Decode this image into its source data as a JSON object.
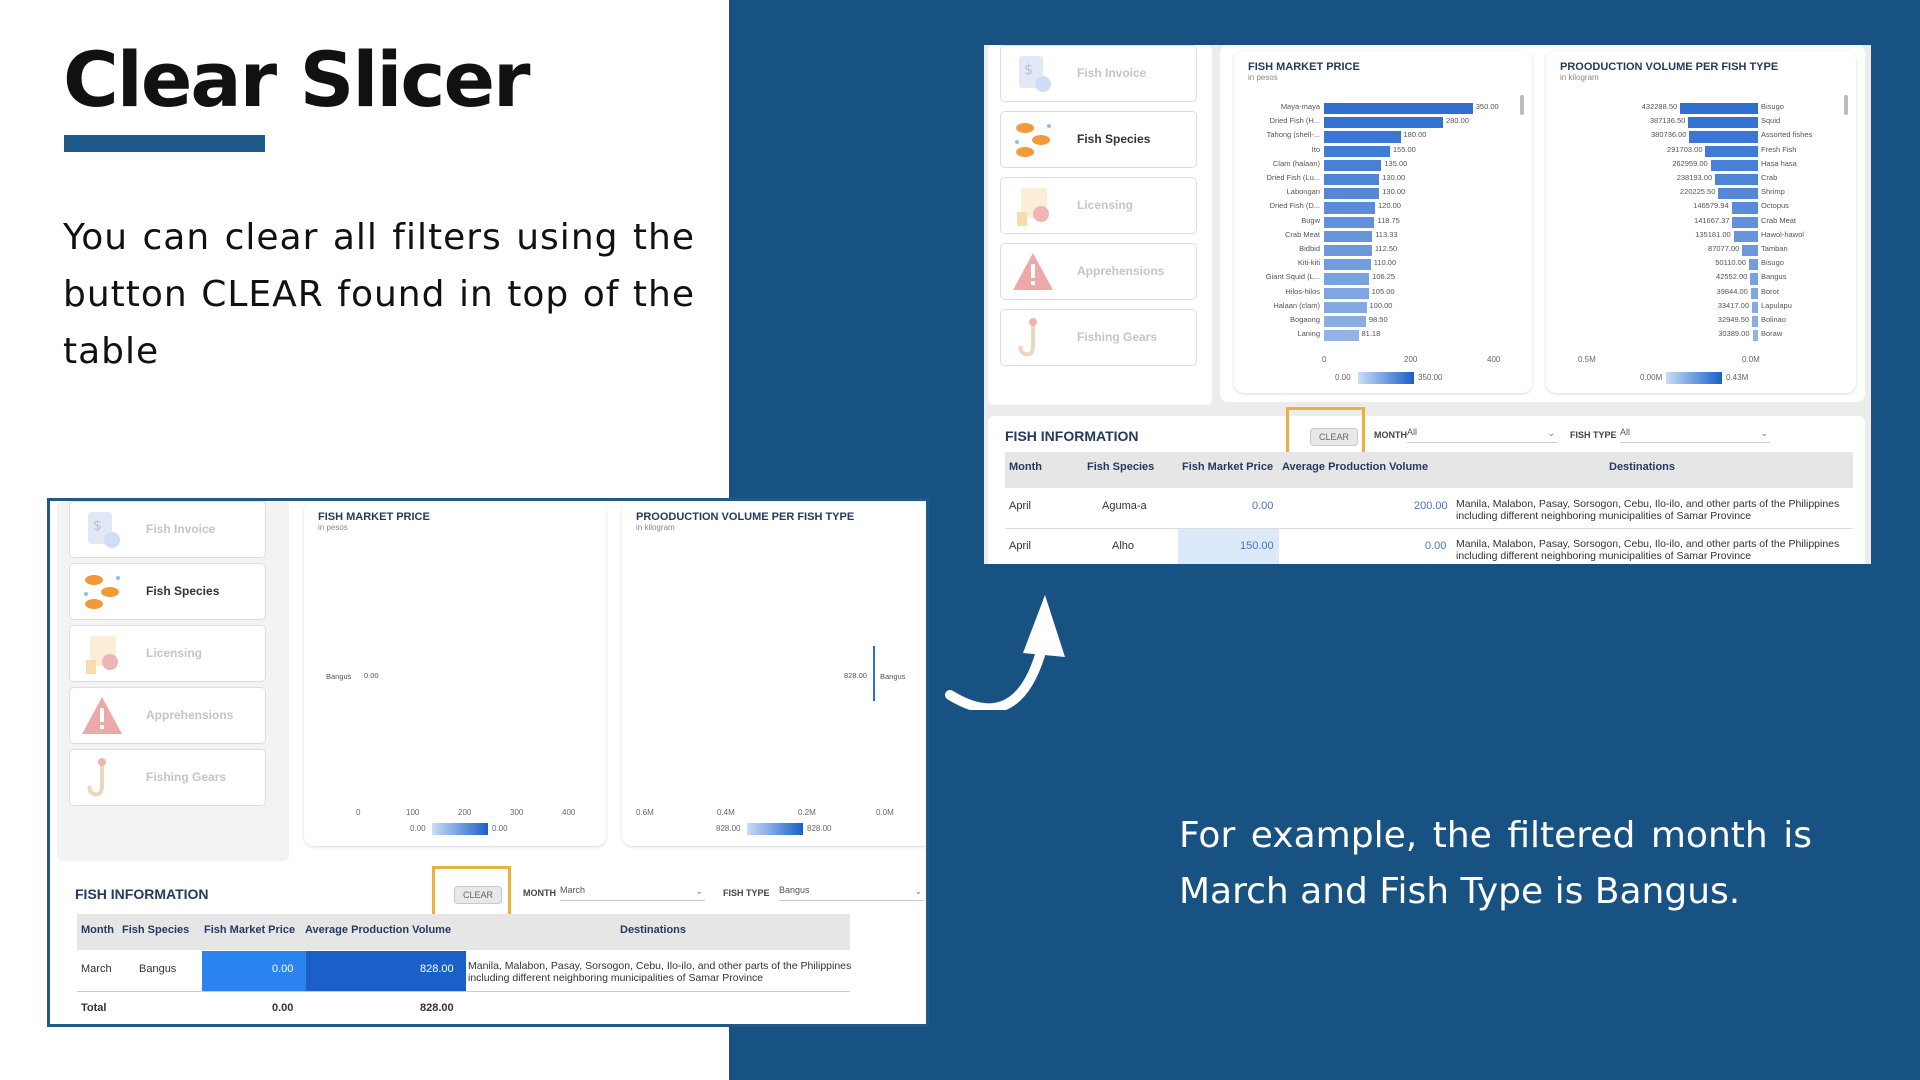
{
  "slide": {
    "title": "Clear Slicer",
    "description": "You can clear all filters using the button CLEAR found in top of the table",
    "example": "For example, the filtered month is March and Fish Type is Bangus."
  },
  "nav_items": [
    "Fish Invoice",
    "Fish Species",
    "Licensing",
    "Apprehensions",
    "Fishing Gears"
  ],
  "charts": {
    "price_title": "FISH MARKET PRICE",
    "price_sub": "in pesos",
    "volume_title": "PROODUCTION VOLUME PER FISH TYPE",
    "volume_sub": "in kilogram"
  },
  "info": {
    "title": "FISH INFORMATION",
    "clear_label": "CLEAR",
    "month_label": "MONTH",
    "fishtype_label": "FISH TYPE",
    "headers": [
      "Month",
      "Fish Species",
      "Fish Market Price",
      "Average Production Volume",
      "Destinations"
    ]
  },
  "filtered": {
    "month_value": "March",
    "fishtype_value": "Bangus",
    "price_bar": {
      "label": "Bangus",
      "value": "0.00"
    },
    "volume_bar": {
      "label": "Bangus",
      "value": "828.00"
    },
    "price_ticks": [
      "0",
      "100",
      "200",
      "300",
      "400"
    ],
    "volume_ticks": [
      "0.6M",
      "0.4M",
      "0.2M",
      "0.0M"
    ],
    "price_legend": [
      "0.00",
      "0.00"
    ],
    "volume_legend": [
      "828.00",
      "828.00"
    ],
    "row": {
      "month": "March",
      "species": "Bangus",
      "price": "0.00",
      "volume": "828.00",
      "destinations": "Manila, Malabon, Pasay, Sorsogon, Cebu, Ilo-ilo, and other parts of the Philippines including different neighboring municipalities of Samar Province"
    },
    "total": {
      "label": "Total",
      "price": "0.00",
      "volume": "828.00"
    }
  },
  "cleared": {
    "month_value": "All",
    "fishtype_value": "All",
    "chart_data": [
      {
        "type": "bar",
        "title": "FISH MARKET PRICE",
        "subtitle": "in pesos",
        "orientation": "horizontal",
        "categories": [
          "Maya-maya",
          "Dried Fish (H...",
          "Tahong (shell-...",
          "Ito",
          "Clam (halaan)",
          "Dried Fish (Lu...",
          "Labongan",
          "Dried Fish (D...",
          "Bugw",
          "Crab Meat",
          "Bidbid",
          "Kiti-kiti",
          "Giant Squid (L...",
          "Hilos-hilos",
          "Halaan (clam)",
          "Bogaong",
          "Laning"
        ],
        "values": [
          350,
          280,
          180,
          155,
          135,
          130,
          130,
          120,
          118.75,
          113.33,
          112.5,
          110,
          106.25,
          105,
          100,
          98.5,
          81.18
        ],
        "value_labels": [
          "350.00",
          "280.00",
          "180.00",
          "155.00",
          "135.00",
          "130.00",
          "130.00",
          "120.00",
          "118.75",
          "113.33",
          "112.50",
          "110.00",
          "106.25",
          "105.00",
          "100.00",
          "98.50",
          "81.18"
        ],
        "xlim": [
          0,
          400
        ],
        "ticks": [
          "0",
          "200",
          "400"
        ],
        "legend": [
          "0.00",
          "350.00"
        ]
      },
      {
        "type": "bar",
        "title": "PROODUCTION VOLUME PER FISH TYPE",
        "subtitle": "in kilogram",
        "orientation": "horizontal",
        "categories": [
          "Bisugo",
          "Squid",
          "Assorted fishes",
          "Fresh Fish",
          "Hasa hasa",
          "Crab",
          "Shrimp",
          "Octopus",
          "Crab Meat",
          "Hawol-hawol",
          "Tamban",
          "Bisugo",
          "Bangus",
          "Borot",
          "Lapulapu",
          "Bolinao",
          "Boraw"
        ],
        "values": [
          432288.5,
          387136.5,
          380736,
          291703,
          262959,
          238193,
          220225.5,
          146579.94,
          141667.37,
          135181,
          87077,
          50110,
          42552,
          39844,
          33417,
          32949.5,
          30389
        ],
        "value_labels": [
          "432288.50",
          "387136.50",
          "380736.00",
          "291703.00",
          "262959.00",
          "238193.00",
          "220225.50",
          "146579.94",
          "141667.37",
          "135181.00",
          "87077.00",
          "50110.00",
          "42552.00",
          "39844.00",
          "33417.00",
          "32949.50",
          "30389.00"
        ],
        "xlim": [
          0,
          500000
        ],
        "ticks": [
          "0.5M",
          "0.0M"
        ],
        "legend": [
          "0.00M",
          "0.43M"
        ]
      }
    ],
    "rows": [
      {
        "month": "April",
        "species": "Aguma-a",
        "price": "0.00",
        "volume": "200.00",
        "destinations": "Manila, Malabon, Pasay, Sorsogon, Cebu, Ilo-ilo, and other parts of the Philippines including different neighboring municipalities of Samar Province"
      },
      {
        "month": "April",
        "species": "Alho",
        "price": "150.00",
        "volume": "0.00",
        "destinations": "Manila, Malabon, Pasay, Sorsogon, Cebu, Ilo-ilo, and other parts of the Philippines including different neighboring municipalities of Samar Province"
      }
    ]
  },
  "colors": {
    "navy": "#175282",
    "bar": "#2f6fcf",
    "highlight": "#e8b23f"
  }
}
